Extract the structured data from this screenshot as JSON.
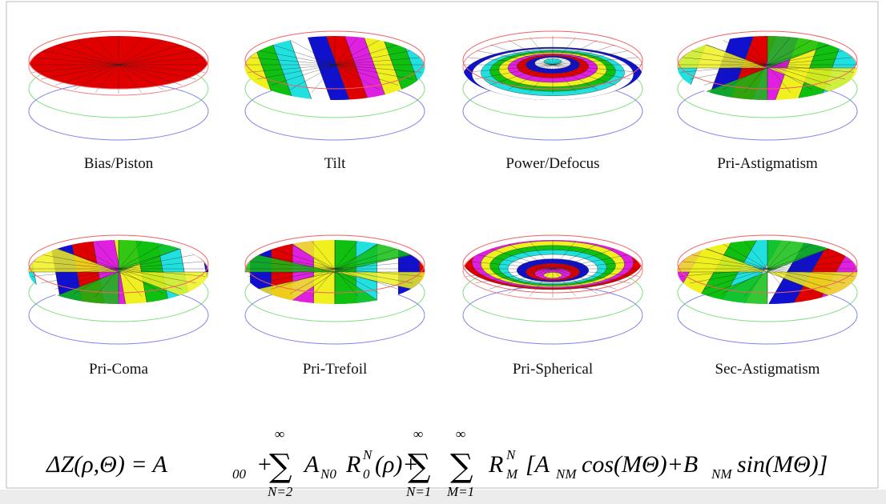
{
  "panels": [
    {
      "label": "Bias/Piston"
    },
    {
      "label": "Tilt"
    },
    {
      "label": "Power/Defocus"
    },
    {
      "label": "Pri-Astigmatism"
    },
    {
      "label": "Pri-Coma"
    },
    {
      "label": "Pri-Trefoil"
    },
    {
      "label": "Pri-Spherical"
    },
    {
      "label": "Sec-Astigmatism"
    }
  ],
  "formula": [
    "ΔZ(ρ,Θ) = A",
    "00",
    "+",
    "∞",
    "∑",
    "N=2",
    "A",
    "N0",
    "R",
    "N",
    "0",
    "(ρ)+",
    "∞",
    "∑",
    "N=1",
    "∞",
    "∑",
    "M=1",
    "R",
    "N",
    "M",
    "[A",
    "NM",
    "cos(MΘ)+B",
    "NM",
    "sin(MΘ)]"
  ]
}
